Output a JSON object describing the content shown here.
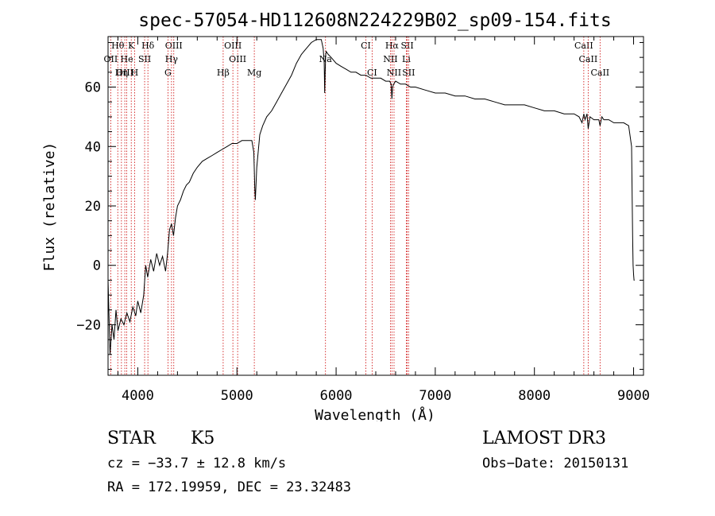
{
  "chart_data": {
    "type": "line",
    "title": "spec-57054-HD112608N224229B02_sp09-154.fits",
    "xlabel": "Wavelength (Å)",
    "ylabel": "Flux (relative)",
    "xlim": [
      3700,
      9100
    ],
    "ylim": [
      -37,
      77
    ],
    "xticks": [
      4000,
      5000,
      6000,
      7000,
      8000,
      9000
    ],
    "yticks": [
      -20,
      0,
      20,
      40,
      60
    ],
    "grid": false,
    "series": [
      {
        "name": "flux",
        "x": [
          3700,
          3720,
          3740,
          3760,
          3780,
          3800,
          3830,
          3860,
          3890,
          3920,
          3950,
          3980,
          4000,
          4030,
          4060,
          4080,
          4100,
          4130,
          4160,
          4190,
          4220,
          4250,
          4280,
          4300,
          4320,
          4340,
          4360,
          4380,
          4400,
          4430,
          4460,
          4490,
          4520,
          4560,
          4600,
          4650,
          4700,
          4750,
          4800,
          4850,
          4900,
          4950,
          5000,
          5050,
          5100,
          5150,
          5170,
          5180,
          5185,
          5200,
          5230,
          5260,
          5300,
          5350,
          5400,
          5450,
          5500,
          5550,
          5600,
          5650,
          5700,
          5750,
          5800,
          5850,
          5870,
          5880,
          5885,
          5890,
          5895,
          5900,
          5920,
          5950,
          6000,
          6050,
          6100,
          6150,
          6200,
          6250,
          6300,
          6350,
          6400,
          6450,
          6500,
          6540,
          6555,
          6563,
          6570,
          6580,
          6600,
          6650,
          6700,
          6750,
          6800,
          6900,
          7000,
          7100,
          7200,
          7300,
          7400,
          7500,
          7600,
          7700,
          7800,
          7900,
          8000,
          8100,
          8200,
          8300,
          8400,
          8450,
          8480,
          8498,
          8510,
          8530,
          8542,
          8560,
          8600,
          8650,
          8662,
          8680,
          8700,
          8750,
          8800,
          8850,
          8900,
          8950,
          8980,
          8990,
          8995,
          9000,
          9005,
          9010
        ],
        "y": [
          -5,
          -30,
          -20,
          -25,
          -15,
          -22,
          -18,
          -20,
          -16,
          -19,
          -14,
          -17,
          -12,
          -16,
          -10,
          0,
          -4,
          2,
          -2,
          4,
          0,
          3,
          -2,
          4,
          12,
          14,
          10,
          16,
          20,
          22,
          25,
          27,
          28,
          31,
          33,
          35,
          36,
          37,
          38,
          39,
          40,
          41,
          41,
          42,
          42,
          42,
          38,
          26,
          22,
          33,
          44,
          47,
          50,
          52,
          55,
          58,
          61,
          64,
          68,
          71,
          73,
          75,
          76,
          76,
          73,
          68,
          58,
          65,
          71,
          72,
          71,
          70,
          68,
          67,
          66,
          65,
          65,
          64,
          64,
          63,
          63,
          63,
          62,
          62,
          61,
          56,
          60,
          61,
          62,
          61,
          61,
          60,
          60,
          59,
          58,
          58,
          57,
          57,
          56,
          56,
          55,
          54,
          54,
          54,
          53,
          52,
          52,
          51,
          51,
          50,
          48,
          51,
          49,
          51,
          46,
          50,
          49,
          49,
          47,
          50,
          49,
          49,
          48,
          48,
          48,
          47,
          40,
          10,
          0,
          -3,
          -5,
          -5
        ]
      }
    ],
    "lines": [
      {
        "label": "Hθ",
        "x": 3798,
        "row": 0
      },
      {
        "label": "K",
        "x": 3934,
        "row": 0
      },
      {
        "label": "Hδ",
        "x": 4102,
        "row": 0
      },
      {
        "label": "OIII",
        "x": 4363,
        "row": 0
      },
      {
        "label": "OIII",
        "x": 4959,
        "row": 0
      },
      {
        "label": "CI",
        "x": 6300,
        "row": 0
      },
      {
        "label": "Hα",
        "x": 6563,
        "row": 0
      },
      {
        "label": "SII",
        "x": 6717,
        "row": 0
      },
      {
        "label": "CaII",
        "x": 8498,
        "row": 0
      },
      {
        "label": "OII",
        "x": 3727,
        "row": 1
      },
      {
        "label": "He",
        "x": 3889,
        "row": 1
      },
      {
        "label": "SII",
        "x": 4069,
        "row": 1
      },
      {
        "label": "Hγ",
        "x": 4340,
        "row": 1
      },
      {
        "label": "OIII",
        "x": 5007,
        "row": 1
      },
      {
        "label": "Na",
        "x": 5893,
        "row": 1
      },
      {
        "label": "NII",
        "x": 6548,
        "row": 1
      },
      {
        "label": "Li",
        "x": 6708,
        "row": 1
      },
      {
        "label": "CaII",
        "x": 8542,
        "row": 1
      },
      {
        "label": "OIII",
        "x": 3869,
        "row": 2
      },
      {
        "label": "Hη",
        "x": 3835,
        "row": 2
      },
      {
        "label": "H",
        "x": 3968,
        "row": 2
      },
      {
        "label": "G",
        "x": 4304,
        "row": 2
      },
      {
        "label": "Hβ",
        "x": 4861,
        "row": 2
      },
      {
        "label": "Mg",
        "x": 5175,
        "row": 2
      },
      {
        "label": "CI",
        "x": 6363,
        "row": 2
      },
      {
        "label": "NII",
        "x": 6584,
        "row": 2
      },
      {
        "label": "SII",
        "x": 6731,
        "row": 2
      },
      {
        "label": "CaII",
        "x": 8662,
        "row": 2
      }
    ]
  },
  "info": {
    "class_text": "STAR",
    "subclass_text": "K5",
    "survey_text": "LAMOST DR3",
    "cz_text": "cz = −33.7 ± 12.8 km/s",
    "obsdate_text": "Obs−Date: 20150131",
    "radec_text": "RA = 172.19959, DEC =  23.32483"
  },
  "colors": {
    "line_marker": "#cc0000",
    "spectrum": "#000000",
    "axes": "#000000"
  }
}
